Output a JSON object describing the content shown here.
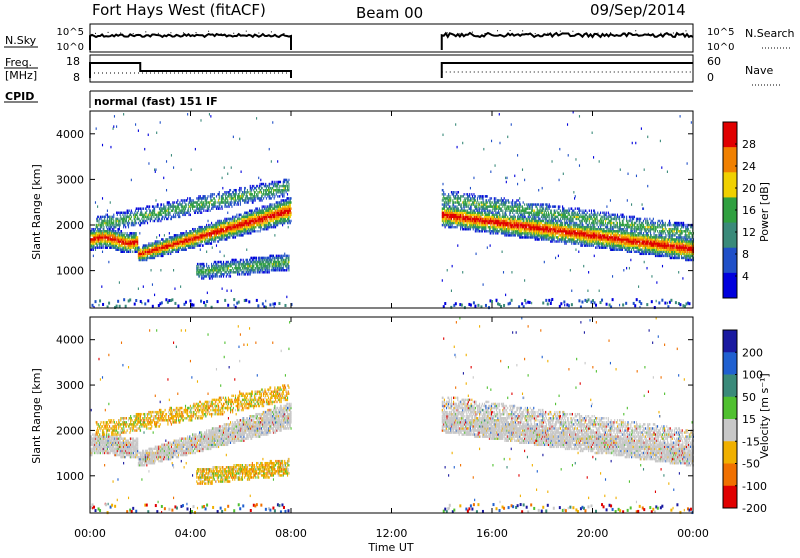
{
  "header": {
    "title": "Fort Hays West (fitACF)",
    "beam": "Beam 00",
    "date": "09/Sep/2014"
  },
  "nsky_panel": {
    "left_label": "N.Sky",
    "right_label": "N.Search",
    "y_ticks": [
      "10^5",
      "10^0"
    ],
    "right_ticks": [
      "10^5",
      "10^0"
    ]
  },
  "freq_panel": {
    "left_label_1": "Freq.",
    "left_label_2": "[MHz]",
    "right_label": "Nave",
    "y_ticks": [
      "18",
      "8"
    ],
    "right_ticks": [
      "60",
      "0"
    ]
  },
  "cpid_panel": {
    "label": "CPID",
    "mode_text": "normal (fast) 151 IF"
  },
  "x_axis": {
    "label": "Time UT",
    "ticks": [
      "00:00",
      "04:00",
      "08:00",
      "12:00",
      "16:00",
      "20:00",
      "00:00"
    ]
  },
  "chart_data": [
    {
      "type": "heatmap",
      "parameter": "Power",
      "ylabel": "Slant Range [km]",
      "xlabel": "",
      "ylim": [
        180,
        4500
      ],
      "xlim_hours": [
        0,
        24
      ],
      "y_ticks": [
        "1000",
        "2000",
        "3000",
        "4000"
      ],
      "colorbar": {
        "label": "Power [dB]",
        "ticks": [
          "4",
          "8",
          "12",
          "16",
          "20",
          "24",
          "28"
        ],
        "colors": [
          "#0000dd",
          "#2050c8",
          "#3a8a7a",
          "#30a040",
          "#f0d000",
          "#f08000",
          "#e00000"
        ]
      },
      "data_windows_hours": [
        [
          0,
          8
        ],
        [
          14,
          24
        ]
      ]
    },
    {
      "type": "heatmap",
      "parameter": "Velocity",
      "ylabel": "Slant Range [km]",
      "xlabel": "Time UT",
      "ylim": [
        180,
        4500
      ],
      "xlim_hours": [
        0,
        24
      ],
      "y_ticks": [
        "1000",
        "2000",
        "3000",
        "4000"
      ],
      "colorbar": {
        "label": "Velocity [m s⁻¹]",
        "ticks": [
          "200",
          "100",
          "50",
          "15",
          "-15",
          "-50",
          "-100",
          "-200"
        ],
        "colors": [
          "#1a1aa0",
          "#2060d0",
          "#3a8a7a",
          "#50c030",
          "#c8c8c8",
          "#f0b000",
          "#f07000",
          "#e00000"
        ]
      },
      "data_windows_hours": [
        [
          0,
          8
        ],
        [
          14,
          24
        ]
      ]
    }
  ]
}
